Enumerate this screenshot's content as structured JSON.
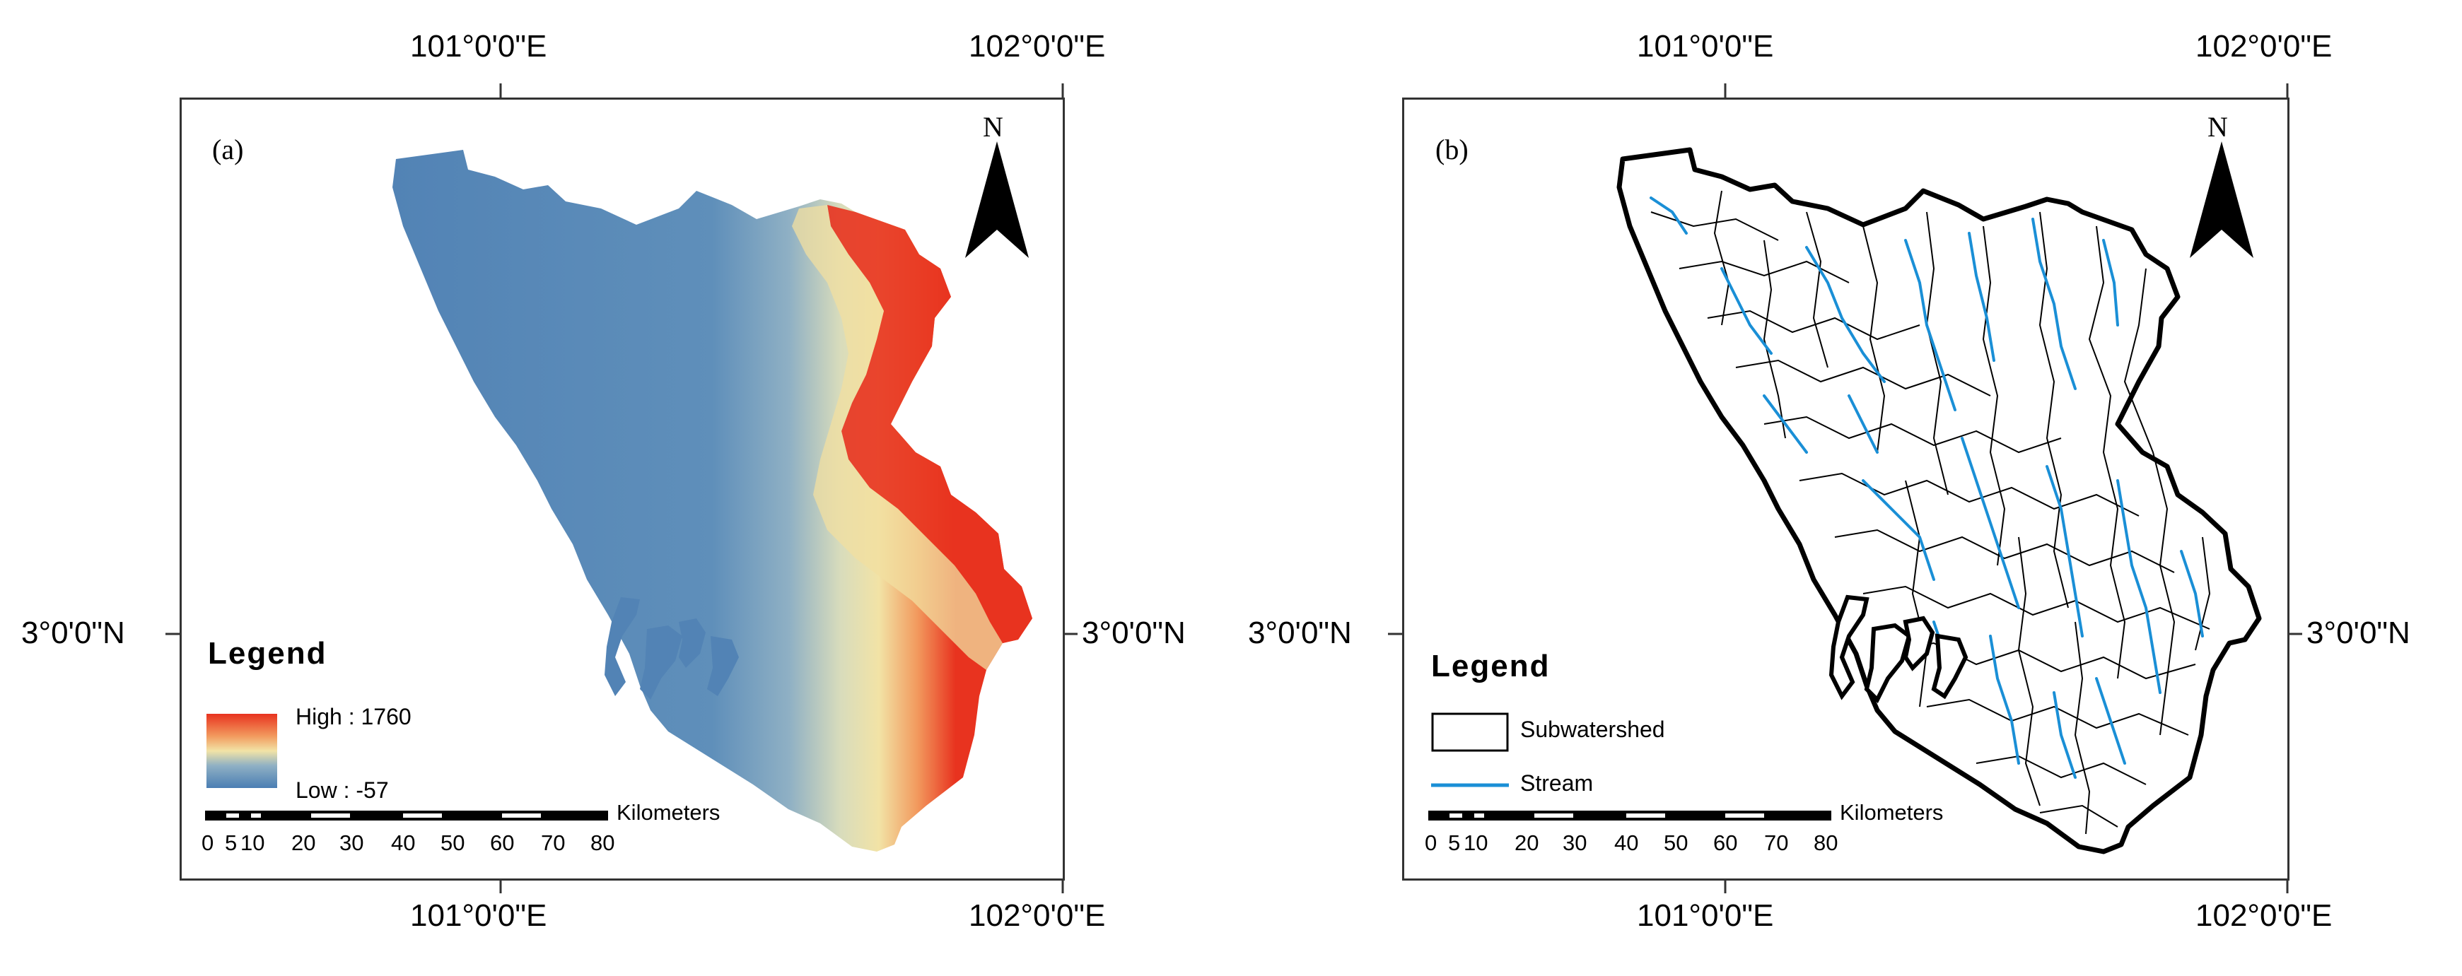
{
  "panels": [
    {
      "label": "(a)",
      "legend_title": "Legend",
      "legend_high": "High : 1760",
      "legend_low": "Low : -57",
      "scale_unit": "Kilometers",
      "scale_ticks": [
        "0",
        "5",
        "10",
        "20",
        "30",
        "40",
        "50",
        "60",
        "70",
        "80"
      ],
      "north": "N",
      "lon_top": [
        "101°0'0\"E",
        "102°0'0\"E"
      ],
      "lon_bottom": [
        "101°0'0\"E",
        "102°0'0\"E"
      ],
      "lat_left": "3°0'0\"N",
      "lat_right": "3°0'0\"N"
    },
    {
      "label": "(b)",
      "legend_title": "Legend",
      "legend_items": [
        "Subwatershed",
        "Stream"
      ],
      "scale_unit": "Kilometers",
      "scale_ticks": [
        "0",
        "5",
        "10",
        "20",
        "30",
        "40",
        "50",
        "60",
        "70",
        "80"
      ],
      "north": "N",
      "lon_top": [
        "101°0'0\"E",
        "102°0'0\"E"
      ],
      "lon_bottom": [
        "101°0'0\"E",
        "102°0'0\"E"
      ],
      "lat_left": "3°0'0\"N",
      "lat_right": "3°0'0\"N"
    }
  ],
  "colors": {
    "elevation_low": "#4a7eb3",
    "elevation_mid": "#f4efb4",
    "elevation_high": "#e8331f",
    "stream": "#1a8fd6",
    "boundary": "#000000"
  }
}
